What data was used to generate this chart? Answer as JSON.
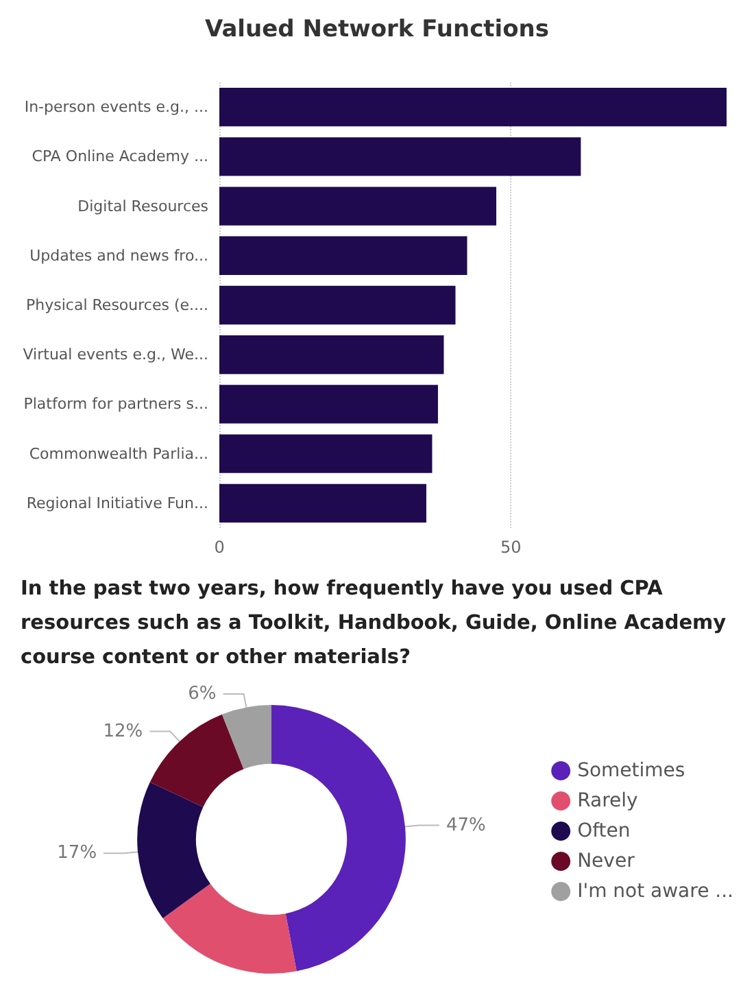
{
  "chart_data": [
    {
      "type": "bar",
      "title": "Valued Network Functions",
      "orientation": "horizontal",
      "categories": [
        "In-person events e.g., ...",
        "CPA Online Academy ...",
        "Digital Resources",
        "Updates and news fro...",
        "Physical Resources (e....",
        "Virtual events e.g., We...",
        "Platform for partners s...",
        "Commonwealth Parlia...",
        "Regional Initiative Fun..."
      ],
      "values": [
        87,
        62,
        47.5,
        42.5,
        40.5,
        38.5,
        37.5,
        36.5,
        35.5
      ],
      "color": "#1f0a50",
      "xlim": [
        0,
        87
      ],
      "xticks": [
        0,
        50
      ],
      "grid": "x",
      "legend": false
    },
    {
      "type": "donut",
      "title": "In the past two years, how frequently have you used CPA resources such as a Toolkit, Handbook, Guide, Online Academy course content or other materials?",
      "categories": [
        "Sometimes",
        "Rarely",
        "Often",
        "Never",
        "I'm not aware ..."
      ],
      "values": [
        47,
        18,
        17,
        12,
        6
      ],
      "colors": [
        "#5a22b8",
        "#e0506e",
        "#1e0a4f",
        "#6b0a26",
        "#a0a0a0"
      ],
      "value_labels": [
        "47%",
        null,
        "17%",
        "12%",
        "6%"
      ],
      "legend": "right"
    }
  ]
}
